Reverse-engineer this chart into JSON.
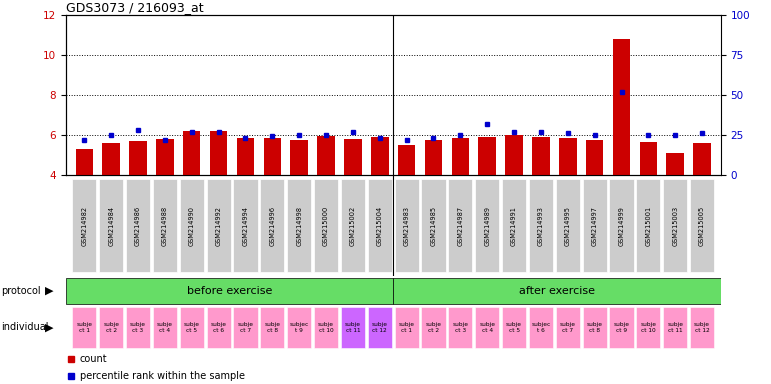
{
  "title": "GDS3073 / 216093_at",
  "samples": [
    "GSM214982",
    "GSM214984",
    "GSM214986",
    "GSM214988",
    "GSM214990",
    "GSM214992",
    "GSM214994",
    "GSM214996",
    "GSM214998",
    "GSM215000",
    "GSM215002",
    "GSM215004",
    "GSM214983",
    "GSM214985",
    "GSM214987",
    "GSM214989",
    "GSM214991",
    "GSM214993",
    "GSM214995",
    "GSM214997",
    "GSM214999",
    "GSM215001",
    "GSM215003",
    "GSM215005"
  ],
  "counts": [
    5.3,
    5.6,
    5.7,
    5.8,
    6.2,
    6.2,
    5.85,
    5.85,
    5.75,
    5.95,
    5.8,
    5.9,
    5.5,
    5.75,
    5.85,
    5.9,
    6.0,
    5.9,
    5.85,
    5.75,
    10.8,
    5.65,
    5.1,
    5.6
  ],
  "percentile_ranks": [
    22,
    25,
    28,
    22,
    27,
    27,
    23,
    24,
    25,
    25,
    27,
    23,
    22,
    23,
    25,
    32,
    27,
    27,
    26,
    25,
    52,
    25,
    25,
    26
  ],
  "indiv_labels": [
    "subje\nct 1",
    "subje\nct 2",
    "subje\nct 3",
    "subje\nct 4",
    "subje\nct 5",
    "subje\nct 6",
    "subje\nct 7",
    "subje\nct 8",
    "subjec\nt 9",
    "subje\nct 10",
    "subje\nct 11",
    "subje\nct 12",
    "subje\nct 1",
    "subje\nct 2",
    "subje\nct 3",
    "subje\nct 4",
    "subje\nct 5",
    "subjec\nt 6",
    "subje\nct 7",
    "subje\nct 8",
    "subje\nct 9",
    "subje\nct 10",
    "subje\nct 11",
    "subje\nct 12"
  ],
  "indiv_colors": [
    "#ff99cc",
    "#ff99cc",
    "#ff99cc",
    "#ff99cc",
    "#ff99cc",
    "#ff99cc",
    "#ff99cc",
    "#ff99cc",
    "#ff99cc",
    "#ff99cc",
    "#cc66ff",
    "#cc66ff",
    "#ff99cc",
    "#ff99cc",
    "#ff99cc",
    "#ff99cc",
    "#ff99cc",
    "#ff99cc",
    "#ff99cc",
    "#ff99cc",
    "#ff99cc",
    "#ff99cc",
    "#ff99cc",
    "#ff99cc"
  ],
  "ylim_left": [
    4,
    12
  ],
  "ylim_right": [
    0,
    100
  ],
  "yticks_left": [
    4,
    6,
    8,
    10,
    12
  ],
  "yticks_right": [
    0,
    25,
    50,
    75,
    100
  ],
  "bar_color": "#cc0000",
  "dot_color": "#0000cc",
  "label_bg_color": "#cccccc",
  "protocol_color": "#66dd66",
  "grid_color": "#000000"
}
